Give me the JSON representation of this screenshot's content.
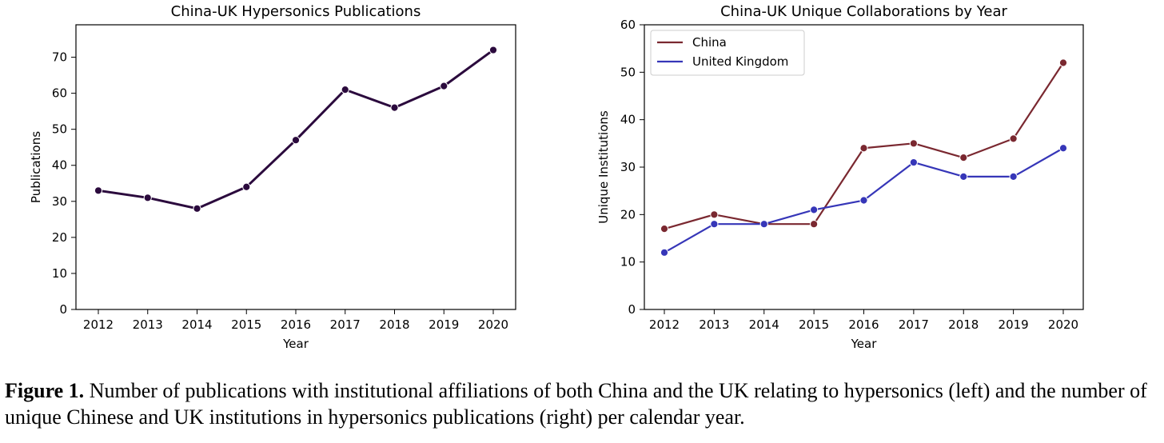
{
  "chart_data": [
    {
      "type": "line",
      "title": "China-UK Hypersonics Publications",
      "xlabel": "Year",
      "ylabel": "Publications",
      "categories": [
        "2012",
        "2013",
        "2014",
        "2015",
        "2016",
        "2017",
        "2018",
        "2019",
        "2020"
      ],
      "ylim": [
        0,
        79
      ],
      "yticks": [
        "0",
        "10",
        "20",
        "30",
        "40",
        "50",
        "60",
        "70"
      ],
      "series": [
        {
          "name": "",
          "color": "#2b0a3d",
          "values": [
            33,
            31,
            28,
            34,
            47,
            61,
            56,
            62,
            72
          ]
        }
      ],
      "legend": "none",
      "grid": false
    },
    {
      "type": "line",
      "title": "China-UK Unique Collaborations by Year",
      "xlabel": "Year",
      "ylabel": "Unique Institutions",
      "categories": [
        "2012",
        "2013",
        "2014",
        "2015",
        "2016",
        "2017",
        "2018",
        "2019",
        "2020"
      ],
      "ylim": [
        0,
        60
      ],
      "yticks": [
        "0",
        "10",
        "20",
        "30",
        "40",
        "50",
        "60"
      ],
      "series": [
        {
          "name": "China",
          "color": "#7a2830",
          "values": [
            17,
            20,
            18,
            18,
            34,
            35,
            32,
            36,
            52
          ]
        },
        {
          "name": "United Kingdom",
          "color": "#3636b8",
          "values": [
            12,
            18,
            18,
            21,
            23,
            31,
            28,
            28,
            34
          ]
        }
      ],
      "legend": "top-left",
      "grid": false
    }
  ],
  "caption": {
    "label": "Figure 1.",
    "text": " Number of publications with institutional affiliations of both China and the UK relating to hypersonics (left) and the number of unique Chinese and UK institutions in hypersonics publications (right) per calendar year."
  }
}
